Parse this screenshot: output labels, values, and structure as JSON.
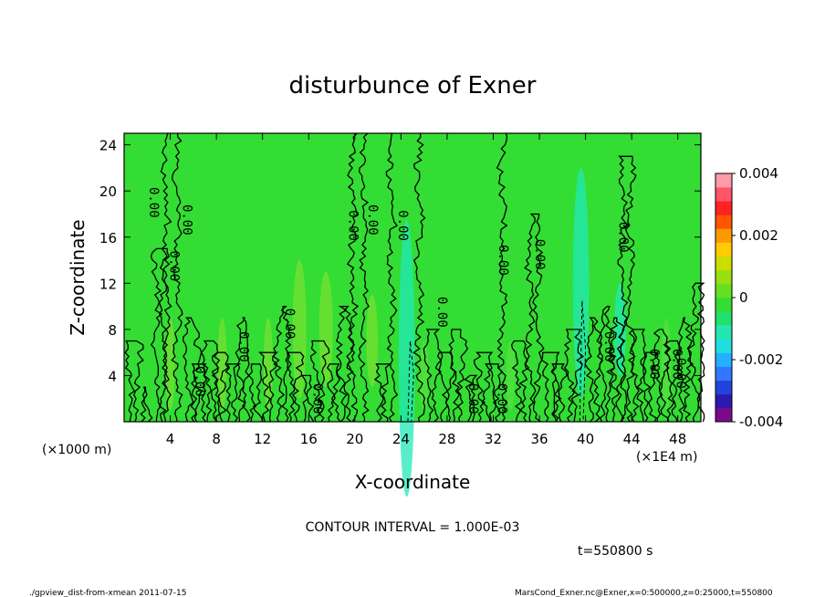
{
  "chart_data": {
    "type": "heatmap",
    "title": "disturbunce of Exner",
    "xlabel": "X-coordinate",
    "ylabel": "Z-coordinate",
    "x_unit_left": "(×1000 m)",
    "x_unit_right": "(×1E4 m)",
    "xlim": [
      0,
      50
    ],
    "ylim": [
      0,
      25
    ],
    "xticks": [
      4,
      8,
      12,
      16,
      20,
      24,
      28,
      32,
      36,
      40,
      44,
      48
    ],
    "yticks": [
      4,
      8,
      12,
      16,
      20,
      24
    ],
    "colorbar": {
      "range": [
        -0.004,
        0.004
      ],
      "tick_labels": [
        "0.004",
        "0.002",
        "0",
        "-0.002",
        "-0.004"
      ],
      "tick_values": [
        0.004,
        0.002,
        0,
        -0.002,
        -0.004
      ],
      "colors": [
        "#7d0a8c",
        "#2a1ab0",
        "#2244dd",
        "#3377ff",
        "#22b0ff",
        "#22dde0",
        "#22e8b0",
        "#22e070",
        "#33dd33",
        "#66e022",
        "#99e011",
        "#ccdd00",
        "#ffcc00",
        "#ff9900",
        "#ff5500",
        "#ff2222",
        "#ff5566",
        "#ff9aa8"
      ]
    },
    "contour_labels": [
      "0.00",
      "0.00",
      "0.00",
      "0.00",
      "0.00",
      "0.00",
      "0.00",
      "0.00",
      "0.00",
      "0.00",
      "0.00",
      "0.00",
      "0.00",
      "0.00",
      "0.00",
      "0.00",
      "0.00",
      "0.00",
      "0.00",
      "0.00"
    ],
    "contour_interval_text": "CONTOUR INTERVAL = 1.000E-03",
    "time_text": "t=550800 s",
    "footer_left": "./gpview_dist-from-xmean  2011-07-15",
    "footer_right": "MarsCond_Exner.nc@Exner,x=0:500000,z=0:25000,t=550800"
  },
  "colors": {
    "field_background": "#33dd33",
    "positive_blob": "#77e033",
    "negative_blob": "#22e8b8"
  }
}
